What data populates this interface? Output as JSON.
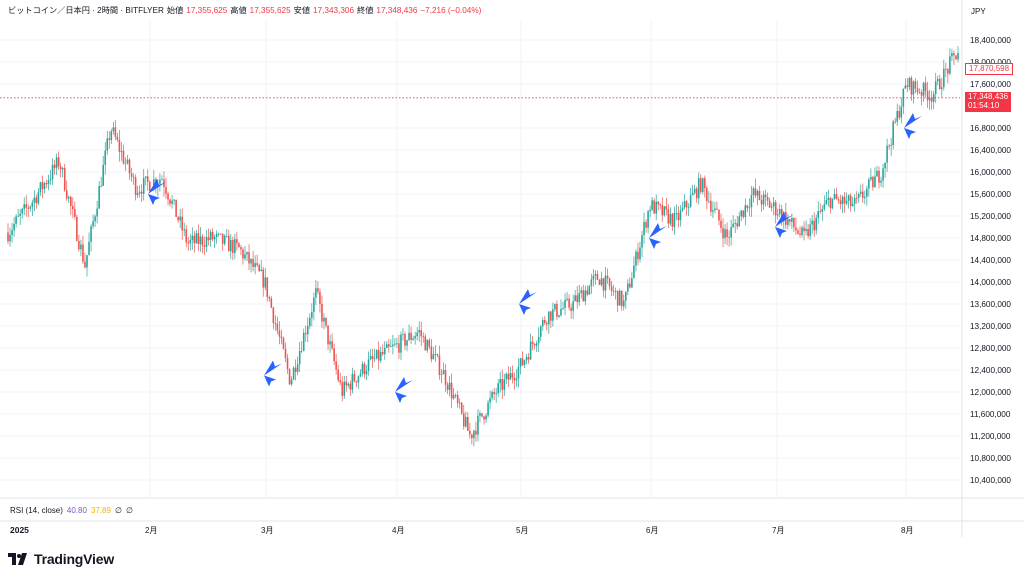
{
  "header": {
    "symbol": "ビットコイン／日本円 · 2時間 · BITFLYER",
    "open_label": "始値",
    "open_value": "17,355,625",
    "high_label": "高値",
    "high_value": "17,355,625",
    "low_label": "安値",
    "low_value": "17,343,306",
    "close_label": "終値",
    "close_value": "17,348,436",
    "change": "−7,216 (−0.04%)"
  },
  "currency": "JPY",
  "price_tags": {
    "high_tag": "17,870,598",
    "last_price": "17,348,436",
    "countdown": "01:54:10"
  },
  "rsi": {
    "label": "RSI (14, close)",
    "value1": "40.80",
    "value2": "37.89",
    "icon1": "∅",
    "icon2": "∅"
  },
  "time_axis": {
    "year_label": "2025",
    "months": [
      "2月",
      "3月",
      "4月",
      "5月",
      "6月",
      "7月",
      "8月"
    ]
  },
  "brand": {
    "name": "TradingView"
  },
  "colors": {
    "up": "#26a69a",
    "down": "#ef5350",
    "arrow": "#2962ff",
    "last_line": "#f23645"
  },
  "chart_data": {
    "type": "line",
    "title": "",
    "xlabel": "",
    "ylabel": "",
    "y_ticks": [
      "18,400,000",
      "18,000,000",
      "17,600,000",
      "16,800,000",
      "16,400,000",
      "16,000,000",
      "15,600,000",
      "15,200,000",
      "14,800,000",
      "14,400,000",
      "14,000,000",
      "13,600,000",
      "13,200,000",
      "12,800,000",
      "12,400,000",
      "12,000,000",
      "11,600,000",
      "11,200,000",
      "10,800,000",
      "10,400,000"
    ],
    "ylim": [
      10200000,
      18700000
    ],
    "x": [
      "2025-01",
      "2025-01",
      "2025-01",
      "2025-01",
      "2025-01",
      "2025-02",
      "2025-02",
      "2025-02",
      "2025-02",
      "2025-02",
      "2025-03",
      "2025-03",
      "2025-03",
      "2025-03",
      "2025-03",
      "2025-03",
      "2025-04",
      "2025-04",
      "2025-04",
      "2025-04",
      "2025-05",
      "2025-05",
      "2025-05",
      "2025-05",
      "2025-05",
      "2025-06",
      "2025-06",
      "2025-06",
      "2025-06",
      "2025-06",
      "2025-07",
      "2025-07",
      "2025-07",
      "2025-07",
      "2025-07",
      "2025-08",
      "2025-08",
      "2025-08"
    ],
    "series": [
      {
        "values": [
          14900000,
          15500000,
          16200000,
          14300000,
          16800000,
          15700000,
          15900000,
          14700000,
          14800000,
          14600000,
          14000000,
          12200000,
          13800000,
          12000000,
          12500000,
          12800000,
          13100000,
          12300000,
          11200000,
          12000000,
          12500000,
          13400000,
          13600000,
          14100000,
          13600000,
          15400000,
          15100000,
          15800000,
          14800000,
          15600000,
          15300000,
          14800000,
          15500000,
          15400000,
          16000000,
          17600000,
          17400000,
          18200000
        ]
      }
    ],
    "markers": [
      {
        "x": "2025-02",
        "y": 15600000
      },
      {
        "x": "2025-03",
        "y": 12300000
      },
      {
        "x": "2025-04",
        "y": 12000000
      },
      {
        "x": "2025-05",
        "y": 13600000
      },
      {
        "x": "2025-06",
        "y": 14800000
      },
      {
        "x": "2025-07",
        "y": 15000000
      },
      {
        "x": "2025-08",
        "y": 16800000
      }
    ],
    "grid": true,
    "legend": "none"
  }
}
